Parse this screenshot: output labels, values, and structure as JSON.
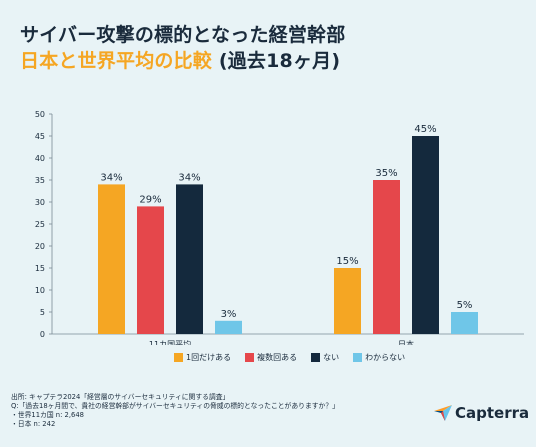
{
  "title": {
    "line1": "サイバー攻撃の標的となった経営幹部",
    "line2": "日本と世界平均の比較",
    "period": "(過去18ヶ月)"
  },
  "colors": {
    "once": "#f5a623",
    "multiple": "#e5474b",
    "none": "#14293d",
    "unknown": "#6fc6e8"
  },
  "chart_data": {
    "type": "bar",
    "categories": [
      "11カ国平均",
      "日本"
    ],
    "series": [
      {
        "name": "1回だけある",
        "values": [
          34,
          15
        ],
        "labels": [
          "34%",
          "15%"
        ]
      },
      {
        "name": "複数回ある",
        "values": [
          29,
          35
        ],
        "labels": [
          "29%",
          "35%"
        ]
      },
      {
        "name": "ない",
        "values": [
          34,
          45
        ],
        "labels": [
          "34%",
          "45%"
        ]
      },
      {
        "name": "わからない",
        "values": [
          3,
          5
        ],
        "labels": [
          "3%",
          "5%"
        ]
      }
    ],
    "ylim": [
      0,
      50
    ],
    "yticks": [
      "0",
      "5",
      "10",
      "15",
      "20",
      "25",
      "30",
      "35",
      "40",
      "45",
      "50"
    ],
    "grid": false,
    "legend": "bottom"
  },
  "source": {
    "line1": "出所: キャプテラ2024「経営層のサイバーセキュリティに関する調査」",
    "line2": "Q:「過去18ヶ月間で、貴社の経営幹部がサイバーセキュリティの脅威の標的となったことがありますか？」",
    "line3": "・世界11カ国 n: 2,648",
    "line4": "・日本  n: 242"
  },
  "logo": {
    "text": "Capterra",
    "icon": "capterra-arrow-icon"
  }
}
